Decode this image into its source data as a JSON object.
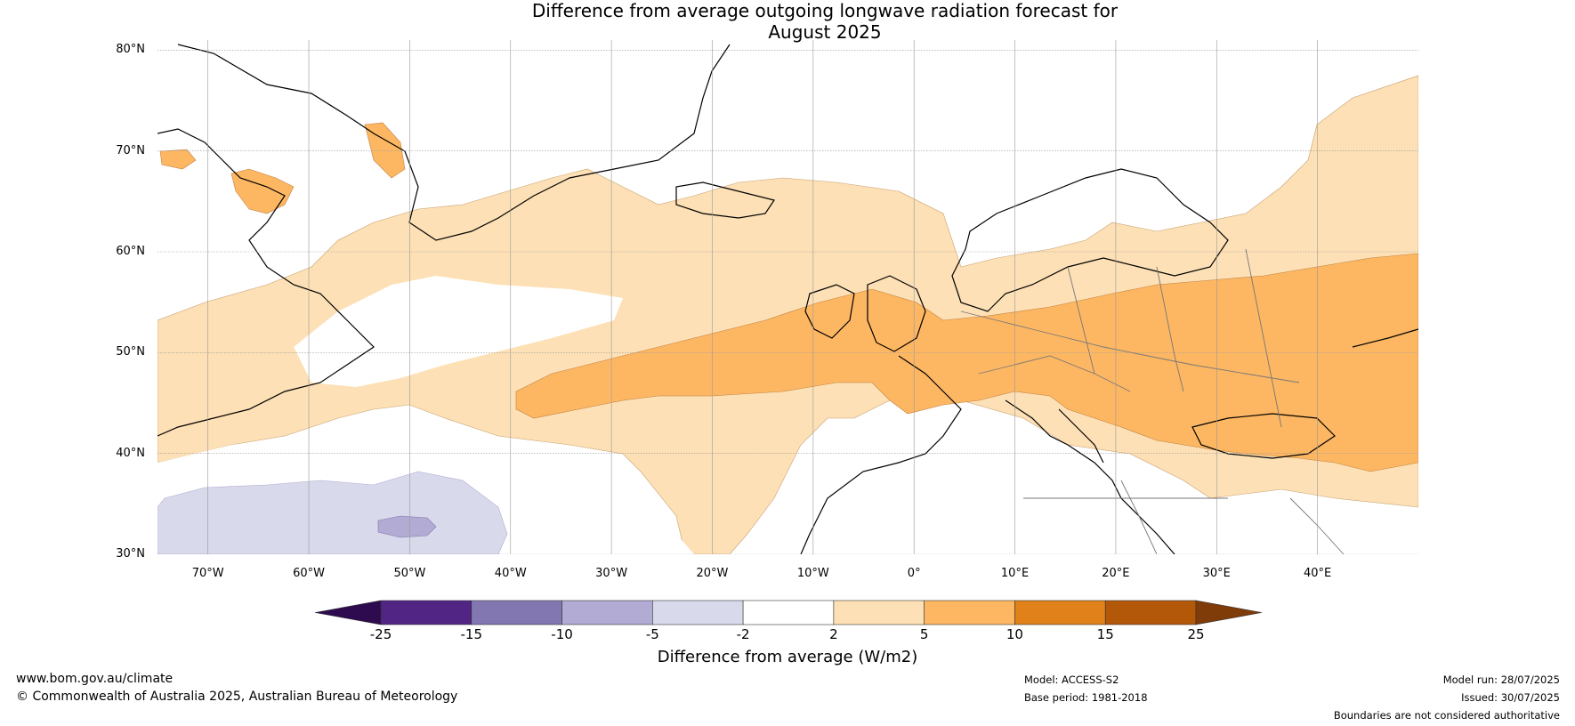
{
  "title_line1": "Difference from average outgoing longwave radiation forecast for",
  "title_line2": "August 2025",
  "latitudes": [
    {
      "label": "80°N",
      "value": 80
    },
    {
      "label": "70°N",
      "value": 70
    },
    {
      "label": "60°N",
      "value": 60
    },
    {
      "label": "50°N",
      "value": 50
    },
    {
      "label": "40°N",
      "value": 40
    },
    {
      "label": "30°N",
      "value": 30
    }
  ],
  "longitudes": [
    {
      "label": "70°W",
      "value": -70
    },
    {
      "label": "60°W",
      "value": -60
    },
    {
      "label": "50°W",
      "value": -50
    },
    {
      "label": "40°W",
      "value": -40
    },
    {
      "label": "30°W",
      "value": -30
    },
    {
      "label": "20°W",
      "value": -20
    },
    {
      "label": "10°W",
      "value": -10
    },
    {
      "label": "0°",
      "value": 0
    },
    {
      "label": "10°E",
      "value": 10
    },
    {
      "label": "20°E",
      "value": 20
    },
    {
      "label": "30°E",
      "value": 30
    },
    {
      "label": "40°E",
      "value": 40
    }
  ],
  "extent": {
    "lon_min": -75,
    "lon_max": 50,
    "lat_min": 30,
    "lat_max": 81
  },
  "colorbar": {
    "ticks": [
      "-25",
      "-15",
      "-10",
      "-5",
      "-2",
      "2",
      "5",
      "10",
      "15",
      "25"
    ],
    "colors": [
      "#502584",
      "#8277b1",
      "#b2abd3",
      "#d8d9eb",
      "#ffffff",
      "#fde0b5",
      "#fdb763",
      "#e0811a",
      "#b35808"
    ],
    "low_extend_color": "#2e0b4f",
    "high_extend_color": "#7f3b08",
    "label": "Difference from average (W/m2)"
  },
  "footer": {
    "website": "www.bom.gov.au/climate",
    "copyright": "© Commonwealth of Australia 2025, Australian Bureau of Meteorology",
    "model": "Model: ACCESS-S2",
    "base_period": "Base period: 1981-2018",
    "model_run": "Model run: 28/07/2025",
    "issued": "Issued: 30/07/2025",
    "disclaimer": "Boundaries are not considered authoritative"
  }
}
